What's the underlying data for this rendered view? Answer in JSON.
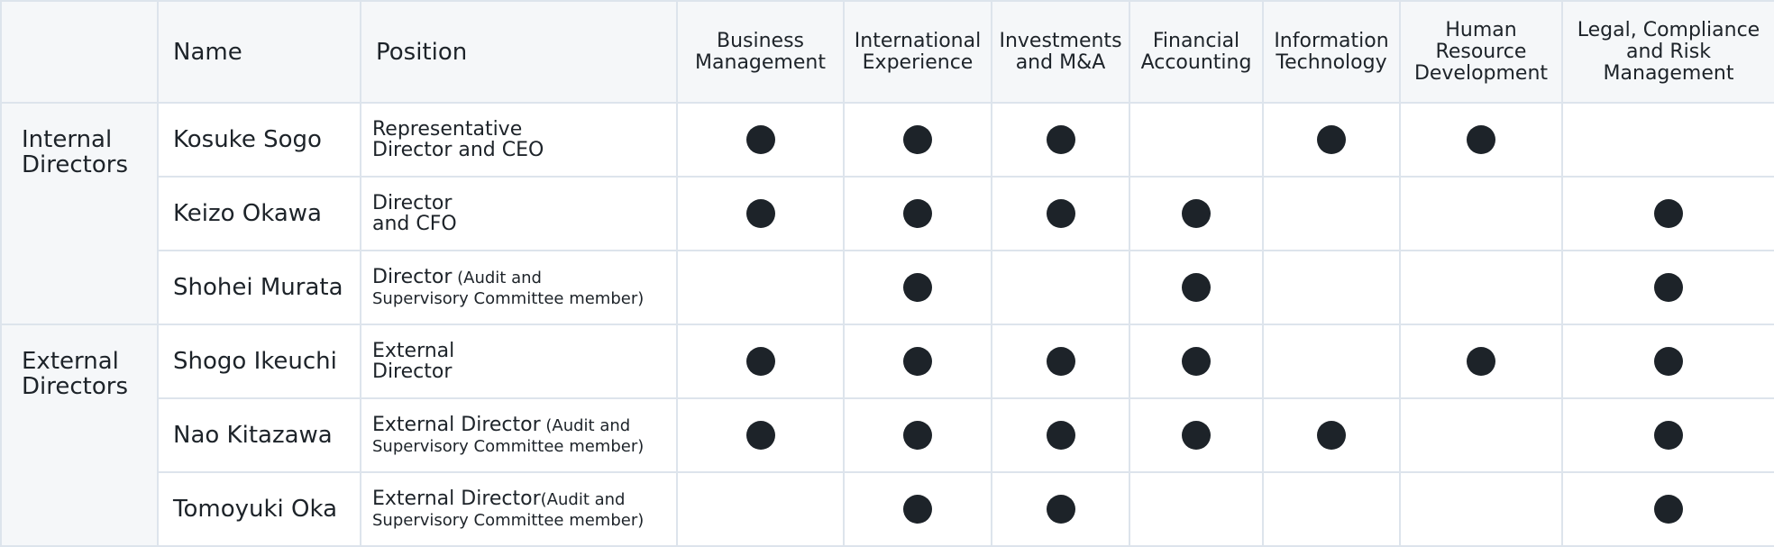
{
  "header": {
    "name": "Name",
    "position": "Position",
    "skills": [
      "Business\nManagement",
      "International\nExperience",
      "Investments\nand M&A",
      "Financial\nAccounting",
      "Information\nTechnology",
      "Human\nResource\nDevelopment",
      "Legal, Compliance\nand Risk\nManagement"
    ]
  },
  "groups": [
    {
      "label": "Internal\nDirectors"
    },
    {
      "label": "External\nDirectors"
    }
  ],
  "rows": [
    {
      "name": "Kosuke Sogo",
      "position": "Representative\nDirector and CEO",
      "note": "",
      "skills": [
        true,
        true,
        true,
        false,
        true,
        true,
        false
      ]
    },
    {
      "name": "Keizo Okawa",
      "position": "Director\nand CFO",
      "note": "",
      "skills": [
        true,
        true,
        true,
        true,
        false,
        false,
        true
      ]
    },
    {
      "name": "Shohei Murata",
      "position": "Director",
      "note": " (Audit and\nSupervisory Committee member)",
      "skills": [
        false,
        true,
        false,
        true,
        false,
        false,
        true
      ]
    },
    {
      "name": "Shogo Ikeuchi",
      "position": "External\nDirector",
      "note": "",
      "skills": [
        true,
        true,
        true,
        true,
        false,
        true,
        true
      ]
    },
    {
      "name": "Nao Kitazawa",
      "position": "External Director",
      "note": " (Audit and\nSupervisory Committee member)",
      "skills": [
        true,
        true,
        true,
        true,
        true,
        false,
        true
      ]
    },
    {
      "name": "Tomoyuki Oka",
      "position": "External Director",
      "note": "(Audit and\nSupervisory Committee member)",
      "skills": [
        false,
        true,
        true,
        false,
        false,
        false,
        true
      ]
    }
  ],
  "colors": {
    "mark": "#1d2329",
    "header_bg": "#f5f7f9",
    "border": "#dde4ec"
  }
}
